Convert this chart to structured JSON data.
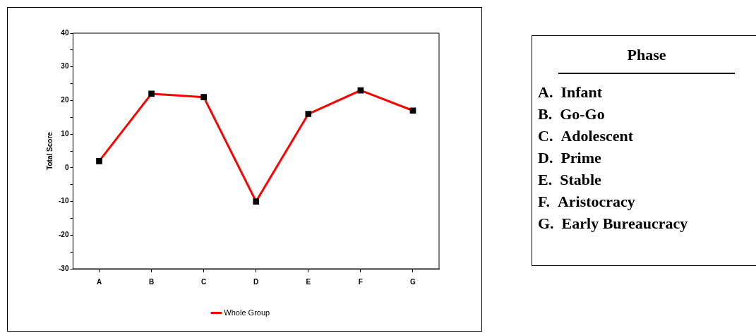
{
  "chart_data": [
    {
      "type": "line",
      "ylabel": "Total Score",
      "categories": [
        "A",
        "B",
        "C",
        "D",
        "E",
        "F",
        "G"
      ],
      "series": [
        {
          "name": "Whole Group",
          "color": "#ff0000",
          "values": [
            2,
            22,
            21,
            -10,
            16,
            23,
            17
          ]
        }
      ],
      "ylim": [
        -30,
        40
      ],
      "yticks": [
        -30,
        {
          "value": -25,
          "label": null
        },
        -20,
        {
          "value": -15,
          "label": null
        },
        -10,
        {
          "value": -5,
          "label": null
        },
        0,
        {
          "value": 5,
          "label": null
        },
        10,
        {
          "value": 15,
          "label": null
        },
        20,
        {
          "value": 25,
          "label": null
        },
        30,
        {
          "value": 35,
          "label": null
        },
        40
      ],
      "marker": "square",
      "line_style": "solid",
      "grid": false,
      "legend": "bottom"
    },
    {
      "type": "other",
      "title": "Phase",
      "annotations": [
        "A.  Infant",
        "B.  Go-Go",
        "C.  Adolescent",
        "D.  Prime",
        "E.  Stable",
        "F.  Aristocracy",
        "G.  Early Bureaucracy"
      ]
    }
  ]
}
